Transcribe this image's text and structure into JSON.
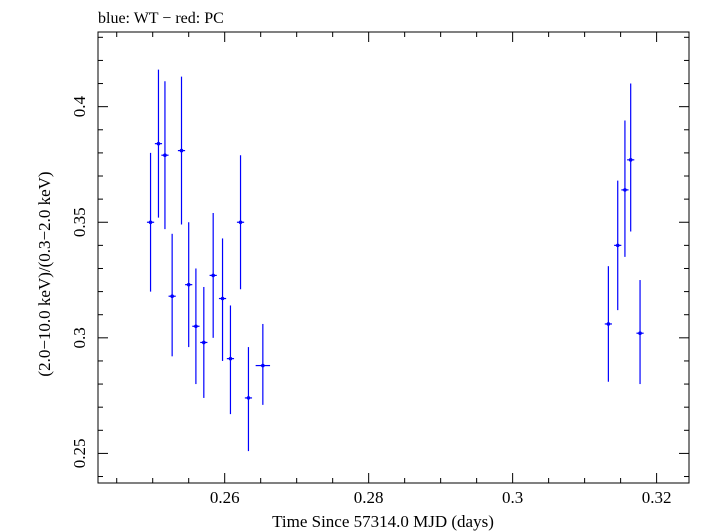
{
  "chart_data": {
    "type": "scatter",
    "title": "blue: WT − red: PC",
    "xlabel": "Time Since 57314.0 MJD (days)",
    "ylabel": "(2.0−10.0 keV)/(0.3−2.0 keV)",
    "xlim": [
      0.2424,
      0.3245
    ],
    "ylim": [
      0.2372,
      0.4323
    ],
    "x_ticks": [
      0.26,
      0.28,
      0.3,
      0.32
    ],
    "x_tick_labels": [
      "0.26",
      "0.28",
      "0.3",
      "0.32"
    ],
    "y_ticks": [
      0.25,
      0.3,
      0.35,
      0.4
    ],
    "y_tick_labels": [
      "0.25",
      "0.3",
      "0.35",
      "0.4"
    ],
    "grid": false,
    "series": [
      {
        "color": "#0000ff",
        "points": [
          {
            "x": 0.2497,
            "y": 0.35,
            "xerr": 0.0005,
            "ylo": 0.32,
            "yhi": 0.38
          },
          {
            "x": 0.2508,
            "y": 0.384,
            "xerr": 0.0005,
            "ylo": 0.352,
            "yhi": 0.416
          },
          {
            "x": 0.2517,
            "y": 0.379,
            "xerr": 0.0005,
            "ylo": 0.347,
            "yhi": 0.411
          },
          {
            "x": 0.2527,
            "y": 0.318,
            "xerr": 0.0005,
            "ylo": 0.292,
            "yhi": 0.345
          },
          {
            "x": 0.254,
            "y": 0.381,
            "xerr": 0.0005,
            "ylo": 0.349,
            "yhi": 0.413
          },
          {
            "x": 0.255,
            "y": 0.323,
            "xerr": 0.0005,
            "ylo": 0.296,
            "yhi": 0.35
          },
          {
            "x": 0.256,
            "y": 0.305,
            "xerr": 0.0005,
            "ylo": 0.28,
            "yhi": 0.33
          },
          {
            "x": 0.2571,
            "y": 0.298,
            "xerr": 0.0005,
            "ylo": 0.274,
            "yhi": 0.322
          },
          {
            "x": 0.2584,
            "y": 0.327,
            "xerr": 0.0005,
            "ylo": 0.3,
            "yhi": 0.354
          },
          {
            "x": 0.2597,
            "y": 0.317,
            "xerr": 0.0005,
            "ylo": 0.29,
            "yhi": 0.343
          },
          {
            "x": 0.2608,
            "y": 0.291,
            "xerr": 0.0005,
            "ylo": 0.267,
            "yhi": 0.314
          },
          {
            "x": 0.2622,
            "y": 0.35,
            "xerr": 0.0005,
            "ylo": 0.321,
            "yhi": 0.379
          },
          {
            "x": 0.2633,
            "y": 0.274,
            "xerr": 0.0005,
            "ylo": 0.251,
            "yhi": 0.296
          },
          {
            "x": 0.2653,
            "y": 0.288,
            "xerr": 0.001,
            "ylo": 0.271,
            "yhi": 0.306
          },
          {
            "x": 0.3133,
            "y": 0.306,
            "xerr": 0.0005,
            "ylo": 0.281,
            "yhi": 0.331
          },
          {
            "x": 0.3146,
            "y": 0.34,
            "xerr": 0.0005,
            "ylo": 0.312,
            "yhi": 0.368
          },
          {
            "x": 0.3156,
            "y": 0.364,
            "xerr": 0.0005,
            "ylo": 0.335,
            "yhi": 0.394
          },
          {
            "x": 0.3164,
            "y": 0.377,
            "xerr": 0.0005,
            "ylo": 0.346,
            "yhi": 0.41
          },
          {
            "x": 0.3177,
            "y": 0.302,
            "xerr": 0.0005,
            "ylo": 0.28,
            "yhi": 0.325
          }
        ]
      }
    ]
  }
}
